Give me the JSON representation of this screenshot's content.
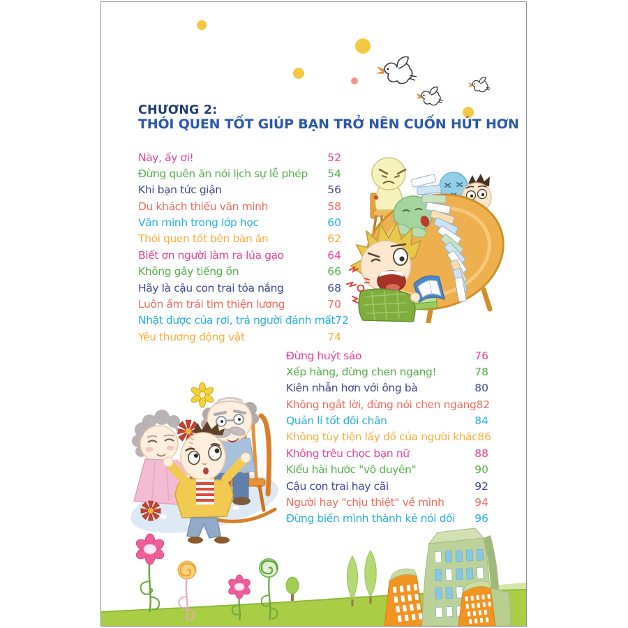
{
  "header": {
    "chapter_label": "CHƯƠNG 2:",
    "chapter_title": "THÓI QUEN TỐT GIÚP BẠN TRỞ NÊN CUỐN HÚT HƠN"
  },
  "palette": {
    "pink": "#e63f97",
    "green": "#54ad4c",
    "navy": "#3d4796",
    "red": "#ef6a5e",
    "cyan": "#29ade0",
    "orange": "#f6ae3f",
    "chapter_label_color": "#24406e",
    "chapter_title_color": "#2b58a8"
  },
  "toc": {
    "left_column": [
      {
        "title": "Này, ấy ơi!",
        "page": "52",
        "color": "pink"
      },
      {
        "title": "Đừng quên ăn nói lịch sự lễ phép",
        "page": "54",
        "color": "green"
      },
      {
        "title": "Khi bạn tức giận",
        "page": "56",
        "color": "navy"
      },
      {
        "title": "Du khách thiếu văn minh",
        "page": "58",
        "color": "red"
      },
      {
        "title": "Văn minh trong lớp học",
        "page": "60",
        "color": "cyan"
      },
      {
        "title": "Thói quen tốt bên bàn ăn",
        "page": "62",
        "color": "orange"
      },
      {
        "title": "Biết ơn người làm ra lúa gạo",
        "page": "64",
        "color": "pink"
      },
      {
        "title": "Không gây tiếng ồn",
        "page": "66",
        "color": "green"
      },
      {
        "title": "Hãy là cậu con trai tỏa nắng",
        "page": "68",
        "color": "navy"
      },
      {
        "title": "Luôn ấm trái tim thiện lương",
        "page": "70",
        "color": "red"
      },
      {
        "title": "Nhặt được của rơi, trả người đánh mất",
        "page": "72",
        "color": "cyan"
      },
      {
        "title": "Yêu thương động vật",
        "page": "74",
        "color": "orange"
      }
    ],
    "right_column": [
      {
        "title": "Đừng huýt sáo",
        "page": "76",
        "color": "pink"
      },
      {
        "title": "Xếp hàng, đừng chen ngang!",
        "page": "78",
        "color": "green"
      },
      {
        "title": "Kiên nhẫn hơn với ông bà",
        "page": "80",
        "color": "navy"
      },
      {
        "title": "Không ngắt lời, đừng nói chen ngang",
        "page": "82",
        "color": "red"
      },
      {
        "title": "Quản lí tốt đôi chân",
        "page": "84",
        "color": "cyan"
      },
      {
        "title": "Không tùy tiện lấy đồ của người khác",
        "page": "86",
        "color": "orange"
      },
      {
        "title": "Không trêu chọc bạn nữ",
        "page": "88",
        "color": "pink"
      },
      {
        "title": "Kiểu hài hước \"vô duyên\"",
        "page": "90",
        "color": "green"
      },
      {
        "title": "Cậu con trai hay cãi",
        "page": "92",
        "color": "navy"
      },
      {
        "title": "Người hay \"chịu thiệt\" về mình",
        "page": "94",
        "color": "red"
      },
      {
        "title": "Đừng biến mình thành kẻ nói dối",
        "page": "96",
        "color": "cyan"
      }
    ]
  },
  "illustrations": {
    "sky": "yellow-dots-and-three-flying-birds",
    "classroom": "children-at-round-table-with-falling-book-stack",
    "family": "boy-held-by-grandma-and-grandpa-in-rocking-chair",
    "footer": "flowers-lollipop-plants-trees-and-buildings-on-green-hill"
  }
}
